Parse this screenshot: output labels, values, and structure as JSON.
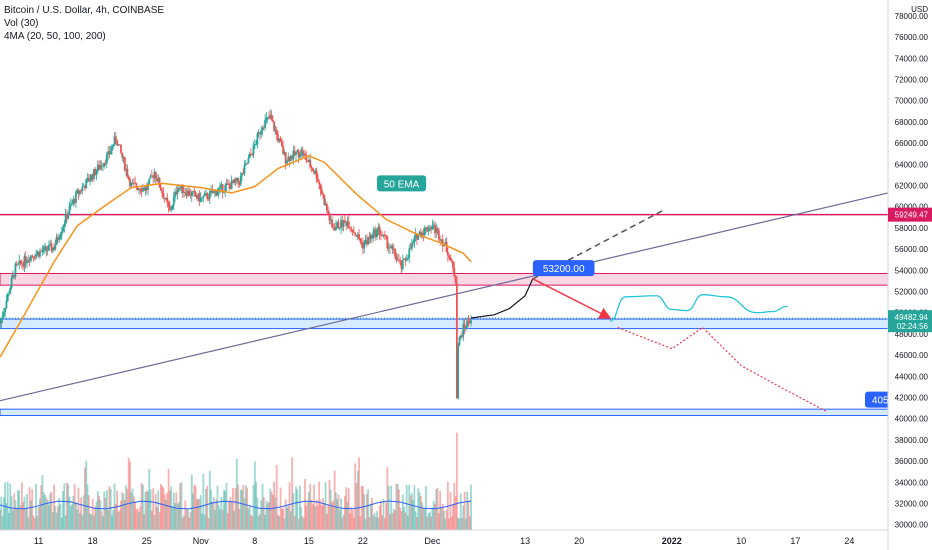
{
  "header": {
    "symbol": "Bitcoin / U.S. Dollar, 4h, COINBASE",
    "volume": "Vol (30)",
    "indicator": "4MA (20, 50, 100, 200)"
  },
  "colors": {
    "up": "#26a69a",
    "down": "#ef5350",
    "ema50": "#f7931a",
    "resistance": "#d81b60",
    "trendline": "#6a6a9a",
    "projection": "#131722",
    "bearish_path": "#f23645",
    "bullish_path": "#26c6da",
    "callout_blue": "#2962ff",
    "callout_teal": "#26a69a",
    "zone_red": "#f8bbd0",
    "zone_blue": "#bbdefb",
    "vol_ma": "#2962ff"
  },
  "chart_data": {
    "type": "candlestick",
    "x_axis": {
      "type": "date",
      "tick_labels": [
        "11",
        "18",
        "25",
        "Nov",
        "8",
        "15",
        "22",
        "Dec",
        "13",
        "20",
        "2022",
        "10",
        "17",
        "24"
      ],
      "range": [
        "2021-10-06",
        "2022-01-29"
      ]
    },
    "y_axis": {
      "position": "right",
      "unit": "USD",
      "range": [
        29500,
        79500
      ],
      "tick_labels": [
        "78000.00",
        "76000.00",
        "74000.00",
        "72000.00",
        "70000.00",
        "68000.00",
        "66000.00",
        "64000.00",
        "62000.00",
        "60000.00",
        "58000.00",
        "56000.00",
        "54000.00",
        "52000.00",
        "50000.00",
        "48000.00",
        "46000.00",
        "44000.00",
        "42000.00",
        "40000.00",
        "38000.00",
        "36000.00",
        "34000.00",
        "32000.00",
        "30000.00"
      ]
    },
    "price_path": [
      [
        "2021-10-06",
        49000
      ],
      [
        "2021-10-08",
        54200
      ],
      [
        "2021-10-10",
        55400
      ],
      [
        "2021-10-13",
        56200
      ],
      [
        "2021-10-15",
        59800
      ],
      [
        "2021-10-16",
        61200
      ],
      [
        "2021-10-20",
        64800
      ],
      [
        "2021-10-21",
        66500
      ],
      [
        "2021-10-23",
        62000
      ],
      [
        "2021-10-25",
        61700
      ],
      [
        "2021-10-26",
        63300
      ],
      [
        "2021-10-28",
        59500
      ],
      [
        "2021-10-29",
        61900
      ],
      [
        "2021-11-01",
        60700
      ],
      [
        "2021-11-04",
        61800
      ],
      [
        "2021-11-06",
        62400
      ],
      [
        "2021-11-08",
        65800
      ],
      [
        "2021-11-09",
        67800
      ],
      [
        "2021-11-10",
        68400
      ],
      [
        "2021-11-12",
        64500
      ],
      [
        "2021-11-14",
        65200
      ],
      [
        "2021-11-16",
        63000
      ],
      [
        "2021-11-18",
        58000
      ],
      [
        "2021-11-20",
        58600
      ],
      [
        "2021-11-22",
        56400
      ],
      [
        "2021-11-24",
        57800
      ],
      [
        "2021-11-26",
        55600
      ],
      [
        "2021-11-27",
        54300
      ],
      [
        "2021-11-28",
        55800
      ],
      [
        "2021-11-29",
        57300
      ],
      [
        "2021-11-30",
        57800
      ],
      [
        "2021-12-01",
        58200
      ],
      [
        "2021-12-02",
        57200
      ],
      [
        "2021-12-03",
        55800
      ],
      [
        "2021-12-04",
        53200
      ],
      [
        "2021-12-04T04",
        42300
      ],
      [
        "2021-12-04T08",
        47000
      ],
      [
        "2021-12-05",
        48500
      ],
      [
        "2021-12-06",
        49482
      ]
    ],
    "ema50": [
      [
        "2021-10-06",
        45800
      ],
      [
        "2021-10-09",
        49600
      ],
      [
        "2021-10-13",
        54800
      ],
      [
        "2021-10-16",
        58200
      ],
      [
        "2021-10-20",
        60300
      ],
      [
        "2021-10-23",
        61800
      ],
      [
        "2021-10-27",
        62200
      ],
      [
        "2021-11-01",
        61800
      ],
      [
        "2021-11-05",
        61300
      ],
      [
        "2021-11-08",
        61900
      ],
      [
        "2021-11-11",
        63600
      ],
      [
        "2021-11-15",
        64800
      ],
      [
        "2021-11-17",
        64200
      ],
      [
        "2021-11-21",
        61300
      ],
      [
        "2021-11-25",
        58800
      ],
      [
        "2021-11-29",
        57400
      ],
      [
        "2021-12-02",
        56600
      ],
      [
        "2021-12-05",
        55600
      ],
      [
        "2021-12-06",
        54800
      ]
    ],
    "volume": {
      "axis_note": "relative volume histogram with moving average, bottom pane",
      "ma_level": 0.25
    },
    "levels": [
      {
        "name": "resistance",
        "price": 59249.47,
        "label": "59249.47"
      },
      {
        "name": "current",
        "price": 49482.94,
        "label": "49482.94",
        "countdown": "02:24:56"
      }
    ],
    "zones": [
      {
        "name": "red-zone",
        "low": 52600,
        "high": 53700
      },
      {
        "name": "blue-zone-upper",
        "low": 48500,
        "high": 49400
      },
      {
        "name": "blue-zone-lower",
        "low": 40300,
        "high": 40900
      }
    ],
    "trendline": [
      [
        "2021-10-06",
        41700
      ],
      [
        "2022-01-29",
        61300
      ]
    ],
    "projection_curve": [
      [
        "2021-12-06",
        49500
      ],
      [
        "2021-12-09",
        49800
      ],
      [
        "2021-12-11",
        50400
      ],
      [
        "2021-12-13",
        51600
      ],
      [
        "2021-12-14",
        53200
      ]
    ],
    "dashed_extension": [
      [
        "2021-12-14",
        53200
      ],
      [
        "2021-12-31",
        59700
      ]
    ],
    "arrow_down": [
      [
        "2021-12-14",
        53200
      ],
      [
        "2021-12-24",
        49500
      ]
    ],
    "bullish_path": [
      [
        "2021-12-24",
        49200
      ],
      [
        "2021-12-26",
        51500
      ],
      [
        "2021-12-30",
        51600
      ],
      [
        "2022-01-01",
        50300
      ],
      [
        "2022-01-03",
        50200
      ],
      [
        "2022-01-05",
        51700
      ],
      [
        "2022-01-08",
        51500
      ],
      [
        "2022-01-12",
        50000
      ],
      [
        "2022-01-14",
        50100
      ],
      [
        "2022-01-16",
        50600
      ]
    ],
    "bearish_path": [
      [
        "2021-12-25",
        48600
      ],
      [
        "2022-01-01",
        46600
      ],
      [
        "2022-01-05",
        48600
      ],
      [
        "2022-01-10",
        45000
      ],
      [
        "2022-01-15",
        43000
      ],
      [
        "2022-01-21",
        40700
      ]
    ],
    "annotations": [
      {
        "text": "50 EMA",
        "date": "2021-11-27",
        "price": 62200,
        "style": "teal"
      },
      {
        "text": "53200.00",
        "date": "2021-12-18",
        "price": 54200,
        "style": "blue"
      },
      {
        "text": "405",
        "date": "2022-01-28",
        "price": 41800,
        "style": "blue"
      }
    ]
  }
}
